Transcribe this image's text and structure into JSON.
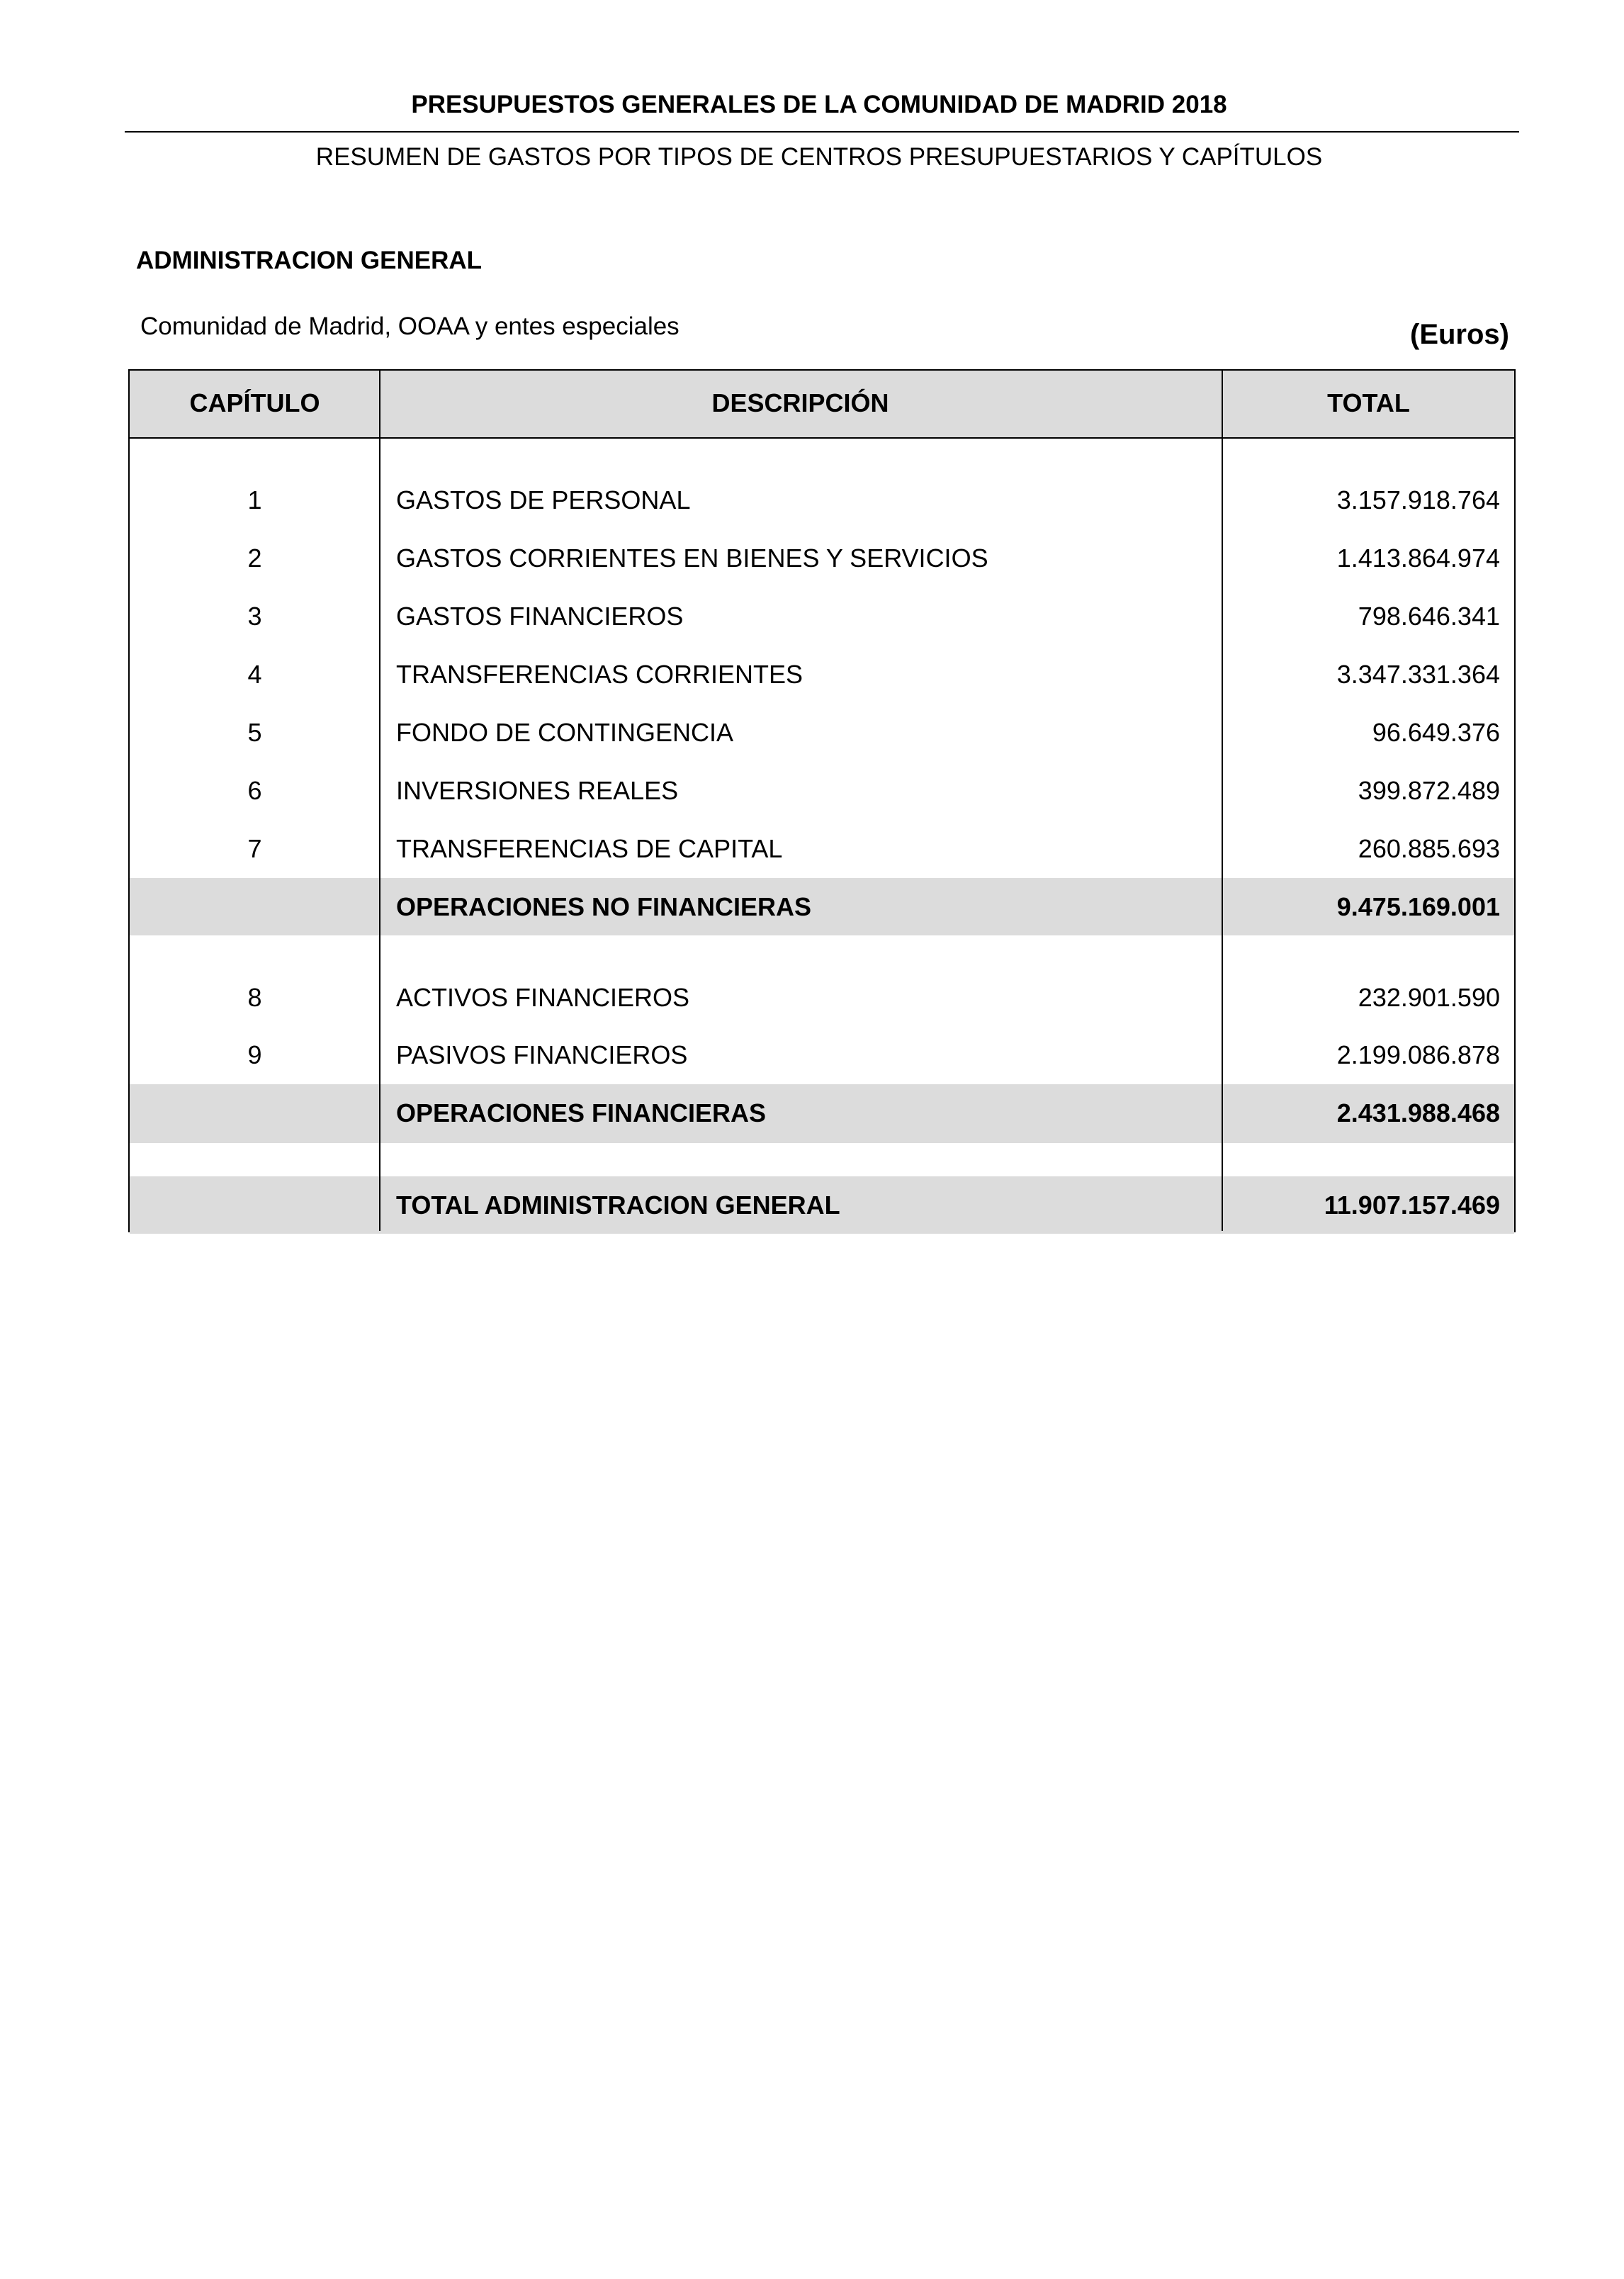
{
  "header": {
    "title": "PRESUPUESTOS GENERALES DE LA COMUNIDAD DE MADRID 2018",
    "subtitle": "RESUMEN DE GASTOS POR TIPOS DE CENTROS PRESUPUESTARIOS Y CAPÍTULOS"
  },
  "section": {
    "title": "ADMINISTRACION GENERAL",
    "entity": "Comunidad de Madrid, OOAA y entes especiales",
    "units": "(Euros)"
  },
  "table": {
    "columns": [
      "CAPÍTULO",
      "DESCRIPCIÓN",
      "TOTAL"
    ],
    "rows": [
      {
        "chapter": "1",
        "description": "GASTOS DE PERSONAL",
        "total": "3.157.918.764"
      },
      {
        "chapter": "2",
        "description": "GASTOS CORRIENTES EN BIENES Y SERVICIOS",
        "total": "1.413.864.974"
      },
      {
        "chapter": "3",
        "description": "GASTOS FINANCIEROS",
        "total": "798.646.341"
      },
      {
        "chapter": "4",
        "description": "TRANSFERENCIAS CORRIENTES",
        "total": "3.347.331.364"
      },
      {
        "chapter": "5",
        "description": "FONDO DE CONTINGENCIA",
        "total": "96.649.376"
      },
      {
        "chapter": "6",
        "description": "INVERSIONES REALES",
        "total": "399.872.489"
      },
      {
        "chapter": "7",
        "description": "TRANSFERENCIAS DE CAPITAL",
        "total": "260.885.693"
      },
      {
        "chapter": "8",
        "description": "ACTIVOS FINANCIEROS",
        "total": "232.901.590"
      },
      {
        "chapter": "9",
        "description": "PASIVOS FINANCIEROS",
        "total": "2.199.086.878"
      }
    ],
    "subtotals": {
      "non_financial": {
        "description": "OPERACIONES NO FINANCIERAS",
        "total": "9.475.169.001"
      },
      "financial": {
        "description": "OPERACIONES FINANCIERAS",
        "total": "2.431.988.468"
      },
      "grand_total": {
        "description": "TOTAL ADMINISTRACION GENERAL",
        "total": "11.907.157.469"
      }
    }
  }
}
